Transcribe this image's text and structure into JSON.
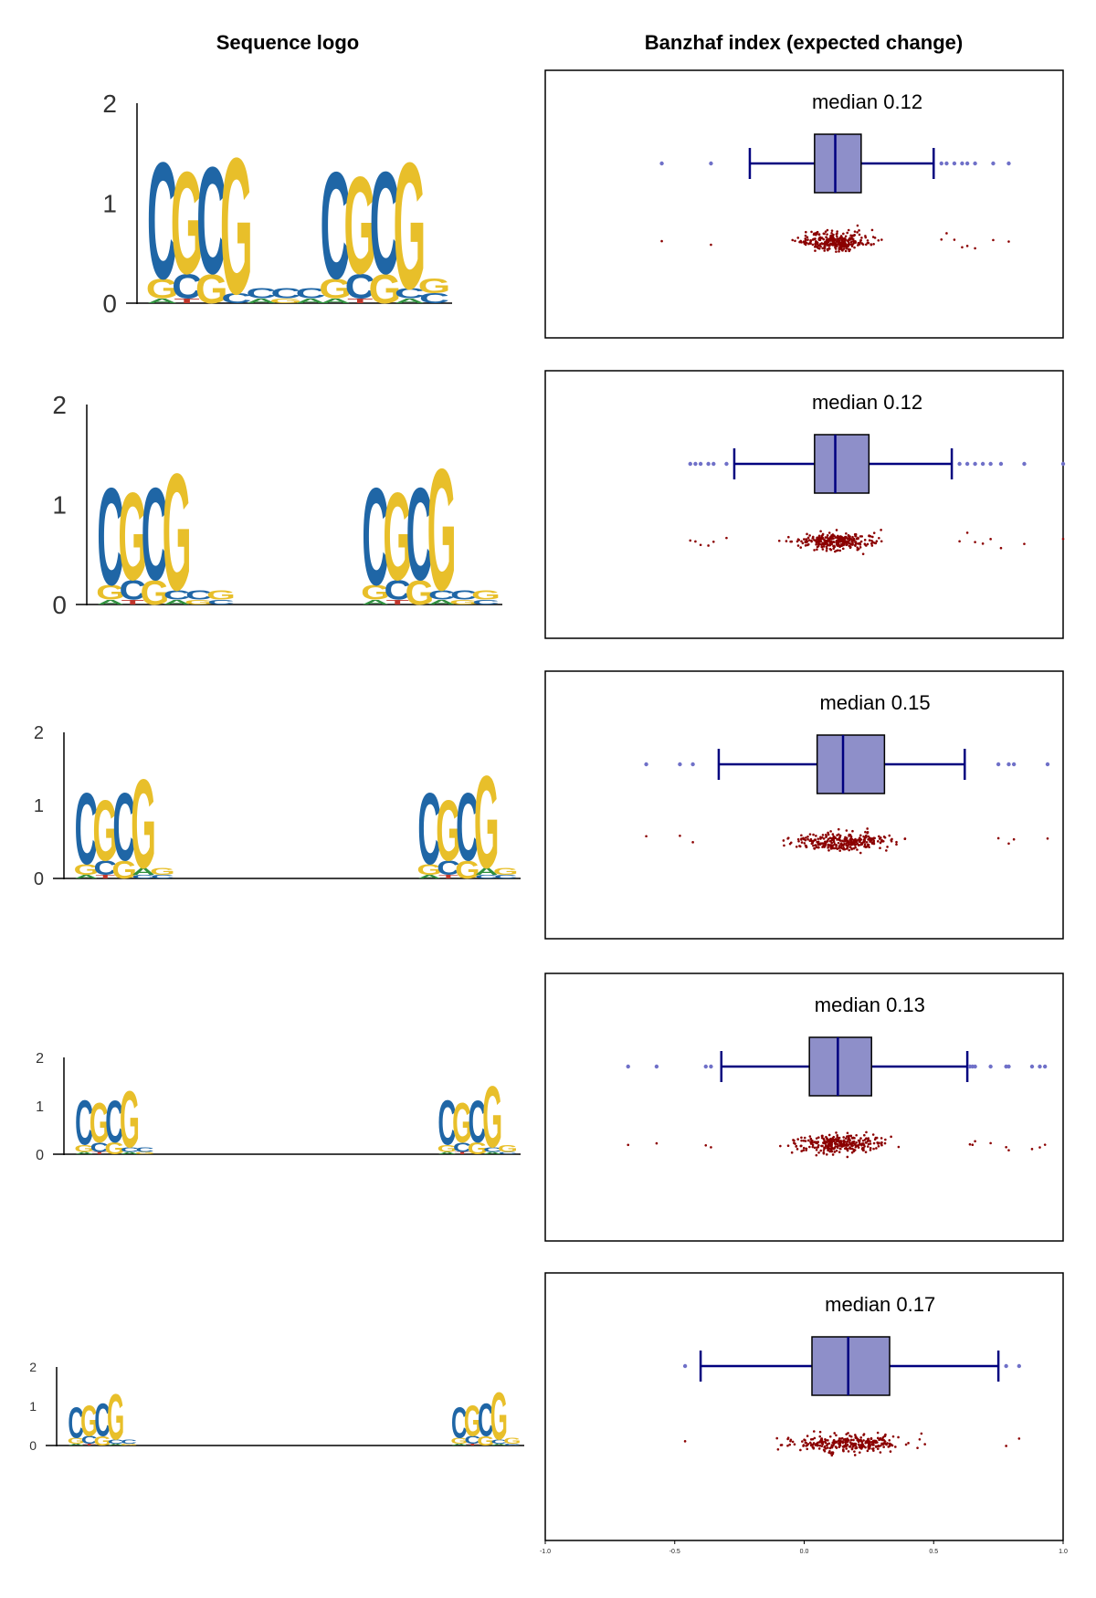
{
  "columns": {
    "left_title": "Sequence logo",
    "right_title": "Banzhaf index (expected change)"
  },
  "colors": {
    "C": "#1f66a6",
    "G": "#e8bf2a",
    "A": "#2f8f3d",
    "T": "#c0352b",
    "box_fill": "#8e8fc9",
    "box_edge": "#000000",
    "whisker": "#00007f",
    "outlier": "#6f70c8",
    "scatter": "#8b0000"
  },
  "logo_yticks": [
    "0",
    "1",
    "2"
  ],
  "chart_data": [
    {
      "type": "sequence-logo+boxplot",
      "logo": {
        "ylim": [
          0,
          2
        ],
        "positions": [
          {
            "C": 1.2,
            "G": 0.2,
            "A": 0.05
          },
          {
            "G": 1.05,
            "C": 0.25,
            "T": 0.05
          },
          {
            "C": 1.1,
            "G": 0.3
          },
          {
            "G": 1.4,
            "C": 0.1
          },
          {
            "C": 0.1,
            "A": 0.05
          },
          {
            "C": 0.1,
            "G": 0.05
          },
          {
            "C": 0.1,
            "A": 0.05
          },
          {
            "C": 1.1,
            "G": 0.2,
            "A": 0.05
          },
          {
            "G": 1.0,
            "C": 0.25,
            "T": 0.05
          },
          {
            "C": 1.05,
            "G": 0.3
          },
          {
            "G": 1.3,
            "C": 0.1,
            "A": 0.05
          },
          {
            "G": 0.15,
            "C": 0.1
          }
        ]
      },
      "box": {
        "median": 0.12,
        "q1": 0.04,
        "q3": 0.22,
        "whislo": -0.21,
        "whishi": 0.5,
        "outliers": [
          -0.55,
          -0.36,
          0.53,
          0.55,
          0.58,
          0.61,
          0.63,
          0.66,
          0.73,
          0.79
        ]
      },
      "median_label": "median 0.12"
    },
    {
      "type": "sequence-logo+boxplot",
      "logo": {
        "ylim": [
          0,
          2
        ],
        "positions": [
          {
            "C": 1.0,
            "G": 0.15,
            "A": 0.05
          },
          {
            "G": 0.9,
            "C": 0.2,
            "T": 0.05
          },
          {
            "C": 0.95,
            "G": 0.25
          },
          {
            "G": 1.2,
            "C": 0.1,
            "A": 0.05
          },
          {
            "C": 0.1,
            "G": 0.05
          },
          {
            "G": 0.1,
            "C": 0.05
          },
          {
            "C": 0.0
          },
          {
            "C": 0.0
          },
          {
            "C": 0.0
          },
          {
            "C": 0.0
          },
          {
            "C": 0.0
          },
          {
            "C": 0.0
          },
          {
            "C": 1.0,
            "G": 0.15,
            "A": 0.05
          },
          {
            "G": 0.9,
            "C": 0.2,
            "T": 0.05
          },
          {
            "C": 0.95,
            "G": 0.25
          },
          {
            "G": 1.25,
            "C": 0.1,
            "A": 0.05
          },
          {
            "C": 0.1,
            "G": 0.05
          },
          {
            "G": 0.1,
            "C": 0.05
          }
        ]
      },
      "box": {
        "median": 0.12,
        "q1": 0.04,
        "q3": 0.25,
        "whislo": -0.27,
        "whishi": 0.57,
        "outliers": [
          -0.44,
          -0.42,
          -0.4,
          -0.37,
          -0.35,
          -0.3,
          0.6,
          0.63,
          0.66,
          0.69,
          0.72,
          0.76,
          0.85,
          1.0
        ]
      },
      "median_label": "median 0.12"
    },
    {
      "type": "sequence-logo+boxplot",
      "logo": {
        "ylim": [
          0,
          2
        ],
        "positions": [
          {
            "C": 1.0,
            "G": 0.15,
            "A": 0.05
          },
          {
            "G": 0.85,
            "C": 0.2,
            "T": 0.05
          },
          {
            "C": 0.95,
            "G": 0.25
          },
          {
            "G": 1.25,
            "A": 0.1,
            "C": 0.05
          },
          {
            "G": 0.1,
            "C": 0.05
          },
          {
            "C": 0.0
          },
          {
            "C": 0.0
          },
          {
            "C": 0.0
          },
          {
            "C": 0.0
          },
          {
            "C": 0.0
          },
          {
            "C": 0.0
          },
          {
            "C": 0.0
          },
          {
            "C": 0.0
          },
          {
            "C": 0.0
          },
          {
            "C": 0.0
          },
          {
            "C": 0.0
          },
          {
            "C": 0.0
          },
          {
            "C": 0.0
          },
          {
            "C": 1.0,
            "G": 0.15,
            "A": 0.05
          },
          {
            "G": 0.85,
            "C": 0.2,
            "T": 0.05
          },
          {
            "C": 0.95,
            "G": 0.25
          },
          {
            "G": 1.3,
            "A": 0.1,
            "C": 0.05
          },
          {
            "G": 0.1,
            "C": 0.05
          }
        ]
      },
      "box": {
        "median": 0.15,
        "q1": 0.05,
        "q3": 0.31,
        "whislo": -0.33,
        "whishi": 0.62,
        "outliers": [
          -0.61,
          -0.48,
          -0.43,
          0.75,
          0.79,
          0.81,
          0.94
        ]
      },
      "median_label": "median 0.15"
    },
    {
      "type": "sequence-logo+boxplot",
      "logo": {
        "ylim": [
          0,
          2
        ],
        "positions": [
          {
            "C": 0.95,
            "G": 0.15,
            "A": 0.05
          },
          {
            "G": 0.85,
            "C": 0.2,
            "T": 0.05
          },
          {
            "C": 0.9,
            "G": 0.25
          },
          {
            "G": 1.2,
            "C": 0.1,
            "A": 0.05
          },
          {
            "C": 0.1,
            "G": 0.05
          },
          {
            "C": 0.0
          },
          {
            "C": 0.0
          },
          {
            "C": 0.0
          },
          {
            "C": 0.0
          },
          {
            "C": 0.0
          },
          {
            "C": 0.0
          },
          {
            "C": 0.0
          },
          {
            "C": 0.0
          },
          {
            "C": 0.0
          },
          {
            "C": 0.0
          },
          {
            "C": 0.0
          },
          {
            "C": 0.0
          },
          {
            "C": 0.0
          },
          {
            "C": 0.0
          },
          {
            "C": 0.0
          },
          {
            "C": 0.0
          },
          {
            "C": 0.0
          },
          {
            "C": 0.0
          },
          {
            "C": 0.0
          },
          {
            "C": 0.95,
            "G": 0.15,
            "A": 0.05
          },
          {
            "G": 0.85,
            "C": 0.2,
            "T": 0.05
          },
          {
            "C": 0.9,
            "G": 0.25
          },
          {
            "G": 1.3,
            "C": 0.1,
            "A": 0.05
          },
          {
            "G": 0.15,
            "C": 0.05
          }
        ]
      },
      "box": {
        "median": 0.13,
        "q1": 0.02,
        "q3": 0.26,
        "whislo": -0.32,
        "whishi": 0.63,
        "outliers": [
          -0.68,
          -0.57,
          -0.38,
          -0.36,
          0.64,
          0.65,
          0.66,
          0.72,
          0.78,
          0.79,
          0.88,
          0.91,
          0.93
        ]
      },
      "median_label": "median 0.13"
    },
    {
      "type": "sequence-logo+boxplot",
      "logo": {
        "ylim": [
          0,
          2
        ],
        "positions": [
          {
            "C": 0.8,
            "G": 0.15,
            "A": 0.05
          },
          {
            "G": 0.8,
            "C": 0.2,
            "T": 0.05
          },
          {
            "C": 0.85,
            "G": 0.25
          },
          {
            "G": 1.2,
            "C": 0.1,
            "A": 0.05
          },
          {
            "C": 0.1,
            "G": 0.05
          },
          {
            "C": 0.0
          },
          {
            "C": 0.0
          },
          {
            "C": 0.0
          },
          {
            "C": 0.0
          },
          {
            "C": 0.0
          },
          {
            "C": 0.0
          },
          {
            "C": 0.0
          },
          {
            "C": 0.0
          },
          {
            "C": 0.0
          },
          {
            "C": 0.0
          },
          {
            "C": 0.0
          },
          {
            "C": 0.0
          },
          {
            "C": 0.0
          },
          {
            "C": 0.0
          },
          {
            "C": 0.0
          },
          {
            "C": 0.0
          },
          {
            "C": 0.0
          },
          {
            "C": 0.0
          },
          {
            "C": 0.0
          },
          {
            "C": 0.0
          },
          {
            "C": 0.0
          },
          {
            "C": 0.0
          },
          {
            "C": 0.0
          },
          {
            "C": 0.0
          },
          {
            "C": 0.8,
            "G": 0.15,
            "A": 0.05
          },
          {
            "G": 0.8,
            "C": 0.2,
            "T": 0.05
          },
          {
            "C": 0.85,
            "G": 0.25
          },
          {
            "G": 1.25,
            "C": 0.1,
            "A": 0.05
          },
          {
            "G": 0.15,
            "C": 0.05
          }
        ]
      },
      "box": {
        "median": 0.17,
        "q1": 0.03,
        "q3": 0.33,
        "whislo": -0.4,
        "whishi": 0.75,
        "outliers": [
          -0.46,
          0.78,
          0.83
        ]
      },
      "median_label": "median 0.17"
    }
  ],
  "x_axis": {
    "xlim": [
      -1.0,
      1.0
    ],
    "ticks": [
      "-1.0",
      "-0.5",
      "0.0",
      "0.5",
      "1.0"
    ]
  }
}
